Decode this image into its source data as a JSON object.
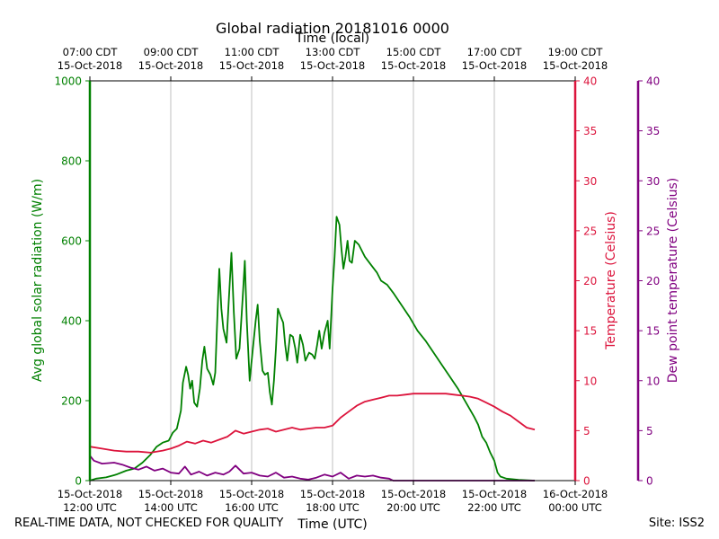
{
  "chart_data": {
    "type": "line",
    "title": "Global radiation 20181016 0000",
    "top_axis_label": "Time (local)",
    "xlabel": "Time (UTC)",
    "ylabel_left": "Avg global solar radiation (W/m)",
    "ylabel_right1": "Temperature (Celsius)",
    "ylabel_right2": "Dew point temperature (Celsius)",
    "xlim_hours": [
      12,
      24
    ],
    "ylim_left": [
      0,
      1000
    ],
    "ylim_right": [
      0,
      40
    ],
    "grid": "vertical",
    "left_ticks": [
      "0",
      "200",
      "400",
      "600",
      "800",
      "1000"
    ],
    "right_ticks": [
      "0",
      "5",
      "10",
      "15",
      "20",
      "25",
      "30",
      "35",
      "40"
    ],
    "bottom_ticks": [
      {
        "line1": "15-Oct-2018",
        "line2": "12:00 UTC"
      },
      {
        "line1": "15-Oct-2018",
        "line2": "14:00 UTC"
      },
      {
        "line1": "15-Oct-2018",
        "line2": "16:00 UTC"
      },
      {
        "line1": "15-Oct-2018",
        "line2": "18:00 UTC"
      },
      {
        "line1": "15-Oct-2018",
        "line2": "20:00 UTC"
      },
      {
        "line1": "15-Oct-2018",
        "line2": "22:00 UTC"
      },
      {
        "line1": "16-Oct-2018",
        "line2": "00:00 UTC"
      }
    ],
    "top_ticks": [
      {
        "line1": "07:00 CDT",
        "line2": "15-Oct-2018"
      },
      {
        "line1": "09:00 CDT",
        "line2": "15-Oct-2018"
      },
      {
        "line1": "11:00 CDT",
        "line2": "15-Oct-2018"
      },
      {
        "line1": "13:00 CDT",
        "line2": "15-Oct-2018"
      },
      {
        "line1": "15:00 CDT",
        "line2": "15-Oct-2018"
      },
      {
        "line1": "17:00 CDT",
        "line2": "15-Oct-2018"
      },
      {
        "line1": "19:00 CDT",
        "line2": "15-Oct-2018"
      }
    ],
    "series": [
      {
        "color": "#008000",
        "axis": "left",
        "points": [
          [
            12.0,
            0
          ],
          [
            12.15,
            5
          ],
          [
            12.4,
            8
          ],
          [
            12.65,
            15
          ],
          [
            12.9,
            25
          ],
          [
            13.1,
            30
          ],
          [
            13.3,
            45
          ],
          [
            13.5,
            65
          ],
          [
            13.65,
            85
          ],
          [
            13.8,
            95
          ],
          [
            13.95,
            100
          ],
          [
            14.05,
            120
          ],
          [
            14.15,
            130
          ],
          [
            14.25,
            175
          ],
          [
            14.3,
            245
          ],
          [
            14.38,
            285
          ],
          [
            14.43,
            265
          ],
          [
            14.48,
            230
          ],
          [
            14.53,
            250
          ],
          [
            14.58,
            195
          ],
          [
            14.65,
            185
          ],
          [
            14.72,
            230
          ],
          [
            14.78,
            300
          ],
          [
            14.83,
            335
          ],
          [
            14.9,
            280
          ],
          [
            14.98,
            265
          ],
          [
            15.05,
            240
          ],
          [
            15.1,
            270
          ],
          [
            15.17,
            460
          ],
          [
            15.2,
            530
          ],
          [
            15.25,
            430
          ],
          [
            15.3,
            380
          ],
          [
            15.38,
            345
          ],
          [
            15.43,
            440
          ],
          [
            15.5,
            570
          ],
          [
            15.56,
            420
          ],
          [
            15.62,
            305
          ],
          [
            15.7,
            330
          ],
          [
            15.78,
            460
          ],
          [
            15.83,
            550
          ],
          [
            15.88,
            400
          ],
          [
            15.95,
            250
          ],
          [
            16.02,
            320
          ],
          [
            16.1,
            400
          ],
          [
            16.15,
            440
          ],
          [
            16.2,
            350
          ],
          [
            16.27,
            275
          ],
          [
            16.33,
            265
          ],
          [
            16.4,
            270
          ],
          [
            16.45,
            220
          ],
          [
            16.5,
            190
          ],
          [
            16.55,
            250
          ],
          [
            16.6,
            330
          ],
          [
            16.65,
            430
          ],
          [
            16.72,
            410
          ],
          [
            16.78,
            395
          ],
          [
            16.83,
            340
          ],
          [
            16.88,
            300
          ],
          [
            16.95,
            365
          ],
          [
            17.02,
            360
          ],
          [
            17.08,
            330
          ],
          [
            17.13,
            295
          ],
          [
            17.2,
            365
          ],
          [
            17.27,
            340
          ],
          [
            17.33,
            300
          ],
          [
            17.42,
            320
          ],
          [
            17.5,
            315
          ],
          [
            17.56,
            305
          ],
          [
            17.62,
            340
          ],
          [
            17.67,
            375
          ],
          [
            17.73,
            330
          ],
          [
            17.8,
            370
          ],
          [
            17.88,
            400
          ],
          [
            17.93,
            330
          ],
          [
            18.0,
            480
          ],
          [
            18.05,
            560
          ],
          [
            18.1,
            660
          ],
          [
            18.17,
            640
          ],
          [
            18.22,
            580
          ],
          [
            18.27,
            530
          ],
          [
            18.32,
            560
          ],
          [
            18.37,
            600
          ],
          [
            18.42,
            550
          ],
          [
            18.48,
            545
          ],
          [
            18.55,
            600
          ],
          [
            18.65,
            590
          ],
          [
            18.8,
            560
          ],
          [
            18.95,
            540
          ],
          [
            19.1,
            520
          ],
          [
            19.2,
            500
          ],
          [
            19.35,
            490
          ],
          [
            19.5,
            470
          ],
          [
            19.7,
            440
          ],
          [
            19.9,
            410
          ],
          [
            20.1,
            375
          ],
          [
            20.3,
            350
          ],
          [
            20.5,
            320
          ],
          [
            20.7,
            290
          ],
          [
            20.9,
            260
          ],
          [
            21.1,
            230
          ],
          [
            21.3,
            195
          ],
          [
            21.5,
            160
          ],
          [
            21.6,
            140
          ],
          [
            21.7,
            110
          ],
          [
            21.8,
            95
          ],
          [
            21.9,
            70
          ],
          [
            22.0,
            50
          ],
          [
            22.08,
            20
          ],
          [
            22.15,
            10
          ],
          [
            22.3,
            5
          ],
          [
            22.6,
            2
          ],
          [
            23.0,
            0
          ]
        ]
      },
      {
        "color": "#dc143c",
        "axis": "right",
        "points": [
          [
            12.0,
            3.4
          ],
          [
            12.3,
            3.2
          ],
          [
            12.6,
            3.0
          ],
          [
            12.9,
            2.9
          ],
          [
            13.2,
            2.9
          ],
          [
            13.5,
            2.8
          ],
          [
            13.8,
            3.0
          ],
          [
            14.0,
            3.2
          ],
          [
            14.2,
            3.5
          ],
          [
            14.4,
            3.9
          ],
          [
            14.6,
            3.7
          ],
          [
            14.8,
            4.0
          ],
          [
            15.0,
            3.8
          ],
          [
            15.2,
            4.1
          ],
          [
            15.4,
            4.4
          ],
          [
            15.6,
            5.0
          ],
          [
            15.8,
            4.7
          ],
          [
            16.0,
            4.9
          ],
          [
            16.2,
            5.1
          ],
          [
            16.4,
            5.2
          ],
          [
            16.6,
            4.9
          ],
          [
            16.8,
            5.1
          ],
          [
            17.0,
            5.3
          ],
          [
            17.2,
            5.1
          ],
          [
            17.4,
            5.2
          ],
          [
            17.6,
            5.3
          ],
          [
            17.8,
            5.3
          ],
          [
            18.0,
            5.5
          ],
          [
            18.2,
            6.3
          ],
          [
            18.4,
            6.9
          ],
          [
            18.6,
            7.5
          ],
          [
            18.8,
            7.9
          ],
          [
            19.0,
            8.1
          ],
          [
            19.2,
            8.3
          ],
          [
            19.4,
            8.5
          ],
          [
            19.6,
            8.5
          ],
          [
            19.8,
            8.6
          ],
          [
            20.0,
            8.7
          ],
          [
            20.2,
            8.7
          ],
          [
            20.4,
            8.7
          ],
          [
            20.6,
            8.7
          ],
          [
            20.8,
            8.7
          ],
          [
            21.0,
            8.6
          ],
          [
            21.2,
            8.5
          ],
          [
            21.4,
            8.4
          ],
          [
            21.6,
            8.2
          ],
          [
            21.8,
            7.8
          ],
          [
            22.0,
            7.4
          ],
          [
            22.2,
            6.9
          ],
          [
            22.4,
            6.5
          ],
          [
            22.6,
            5.9
          ],
          [
            22.8,
            5.3
          ],
          [
            23.0,
            5.1
          ]
        ]
      },
      {
        "color": "#800080",
        "axis": "right",
        "points": [
          [
            12.0,
            2.5
          ],
          [
            12.1,
            2.0
          ],
          [
            12.3,
            1.7
          ],
          [
            12.6,
            1.8
          ],
          [
            12.8,
            1.6
          ],
          [
            13.0,
            1.3
          ],
          [
            13.2,
            1.1
          ],
          [
            13.4,
            1.4
          ],
          [
            13.6,
            1.0
          ],
          [
            13.8,
            1.2
          ],
          [
            14.0,
            0.8
          ],
          [
            14.2,
            0.7
          ],
          [
            14.35,
            1.4
          ],
          [
            14.5,
            0.6
          ],
          [
            14.7,
            0.9
          ],
          [
            14.9,
            0.5
          ],
          [
            15.1,
            0.8
          ],
          [
            15.3,
            0.6
          ],
          [
            15.45,
            0.9
          ],
          [
            15.6,
            1.5
          ],
          [
            15.8,
            0.7
          ],
          [
            16.0,
            0.8
          ],
          [
            16.2,
            0.5
          ],
          [
            16.4,
            0.4
          ],
          [
            16.6,
            0.8
          ],
          [
            16.8,
            0.3
          ],
          [
            17.0,
            0.4
          ],
          [
            17.2,
            0.2
          ],
          [
            17.4,
            0.1
          ],
          [
            17.6,
            0.3
          ],
          [
            17.8,
            0.6
          ],
          [
            18.0,
            0.4
          ],
          [
            18.2,
            0.8
          ],
          [
            18.4,
            0.2
          ],
          [
            18.6,
            0.5
          ],
          [
            18.8,
            0.4
          ],
          [
            19.0,
            0.5
          ],
          [
            19.2,
            0.3
          ],
          [
            19.4,
            0.2
          ],
          [
            19.5,
            0.0
          ],
          [
            20.0,
            0.0
          ],
          [
            20.6,
            0.0
          ],
          [
            21.0,
            0.0
          ],
          [
            22.0,
            0.0
          ],
          [
            23.0,
            0.0
          ]
        ]
      }
    ]
  },
  "footer": {
    "left": "REAL-TIME DATA, NOT CHECKED FOR QUALITY",
    "right": "Site: ISS2"
  }
}
